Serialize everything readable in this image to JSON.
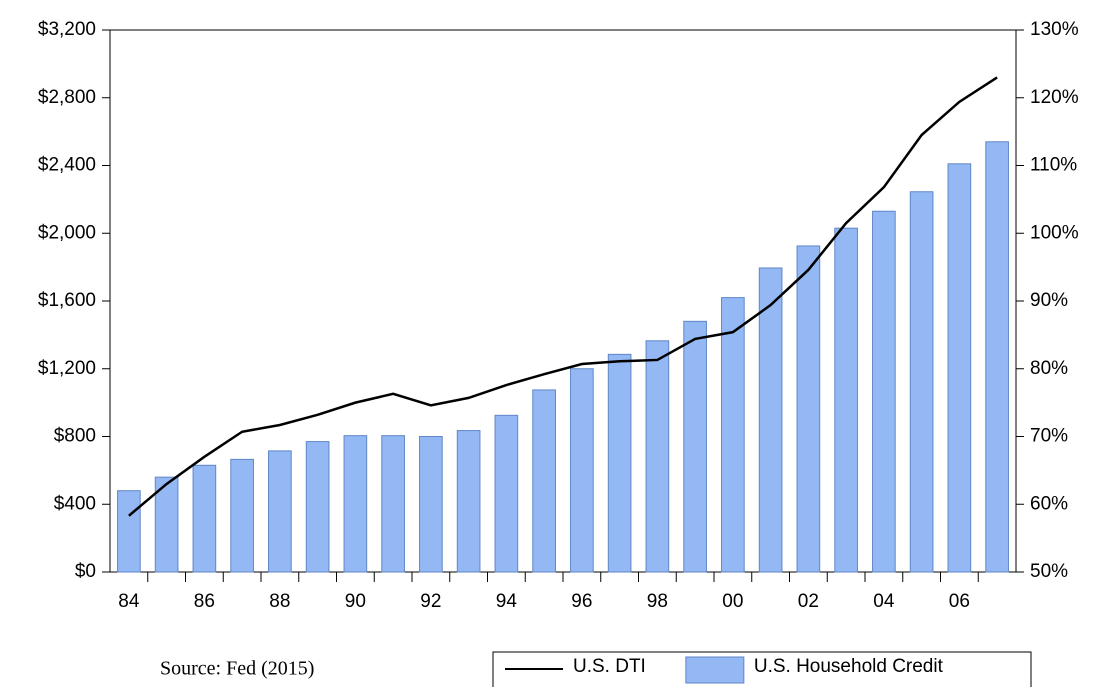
{
  "chart_data": {
    "type": "bar",
    "source": "Source: Fed (2015)",
    "categories": [
      "84",
      null,
      "86",
      null,
      "88",
      null,
      "90",
      null,
      "92",
      null,
      "94",
      null,
      "96",
      null,
      "98",
      null,
      "00",
      null,
      "02",
      null,
      "04",
      null,
      "06",
      null
    ],
    "series": [
      {
        "name": "U.S. Household Credit",
        "type": "bar",
        "axis": "y",
        "color": "#94b8f4",
        "values": [
          480,
          560,
          630,
          665,
          715,
          770,
          805,
          805,
          800,
          835,
          925,
          1075,
          1200,
          1285,
          1365,
          1480,
          1620,
          1795,
          1925,
          2030,
          2130,
          2245,
          2410,
          2540
        ]
      },
      {
        "name": "U.S. DTI",
        "type": "line",
        "axis": "y2",
        "color": "#000000",
        "values": [
          58.3,
          63,
          67,
          70.7,
          71.7,
          73.2,
          75,
          76.3,
          74.6,
          75.7,
          77.6,
          79.2,
          80.7,
          81.1,
          81.3,
          84.4,
          85.4,
          89.4,
          94.6,
          101.5,
          106.8,
          114.5,
          119.4,
          123
        ]
      }
    ],
    "ylim": [
      0,
      3200
    ],
    "yticks": [
      {
        "value": 0,
        "label": "$0"
      },
      {
        "value": 400,
        "label": "$400"
      },
      {
        "value": 800,
        "label": "$800"
      },
      {
        "value": 1200,
        "label": "$1,200"
      },
      {
        "value": 1600,
        "label": "$1,600"
      },
      {
        "value": 2000,
        "label": "$2,000"
      },
      {
        "value": 2400,
        "label": "$2,400"
      },
      {
        "value": 2800,
        "label": "$2,800"
      },
      {
        "value": 3200,
        "label": "$3,200"
      }
    ],
    "y2lim": [
      50,
      130
    ],
    "y2ticks": [
      {
        "value": 50,
        "label": "50%"
      },
      {
        "value": 60,
        "label": "60%"
      },
      {
        "value": 70,
        "label": "70%"
      },
      {
        "value": 80,
        "label": "80%"
      },
      {
        "value": 90,
        "label": "90%"
      },
      {
        "value": 100,
        "label": "100%"
      },
      {
        "value": 110,
        "label": "110%"
      },
      {
        "value": 120,
        "label": "120%"
      },
      {
        "value": 130,
        "label": "130%"
      }
    ],
    "grid": false
  }
}
